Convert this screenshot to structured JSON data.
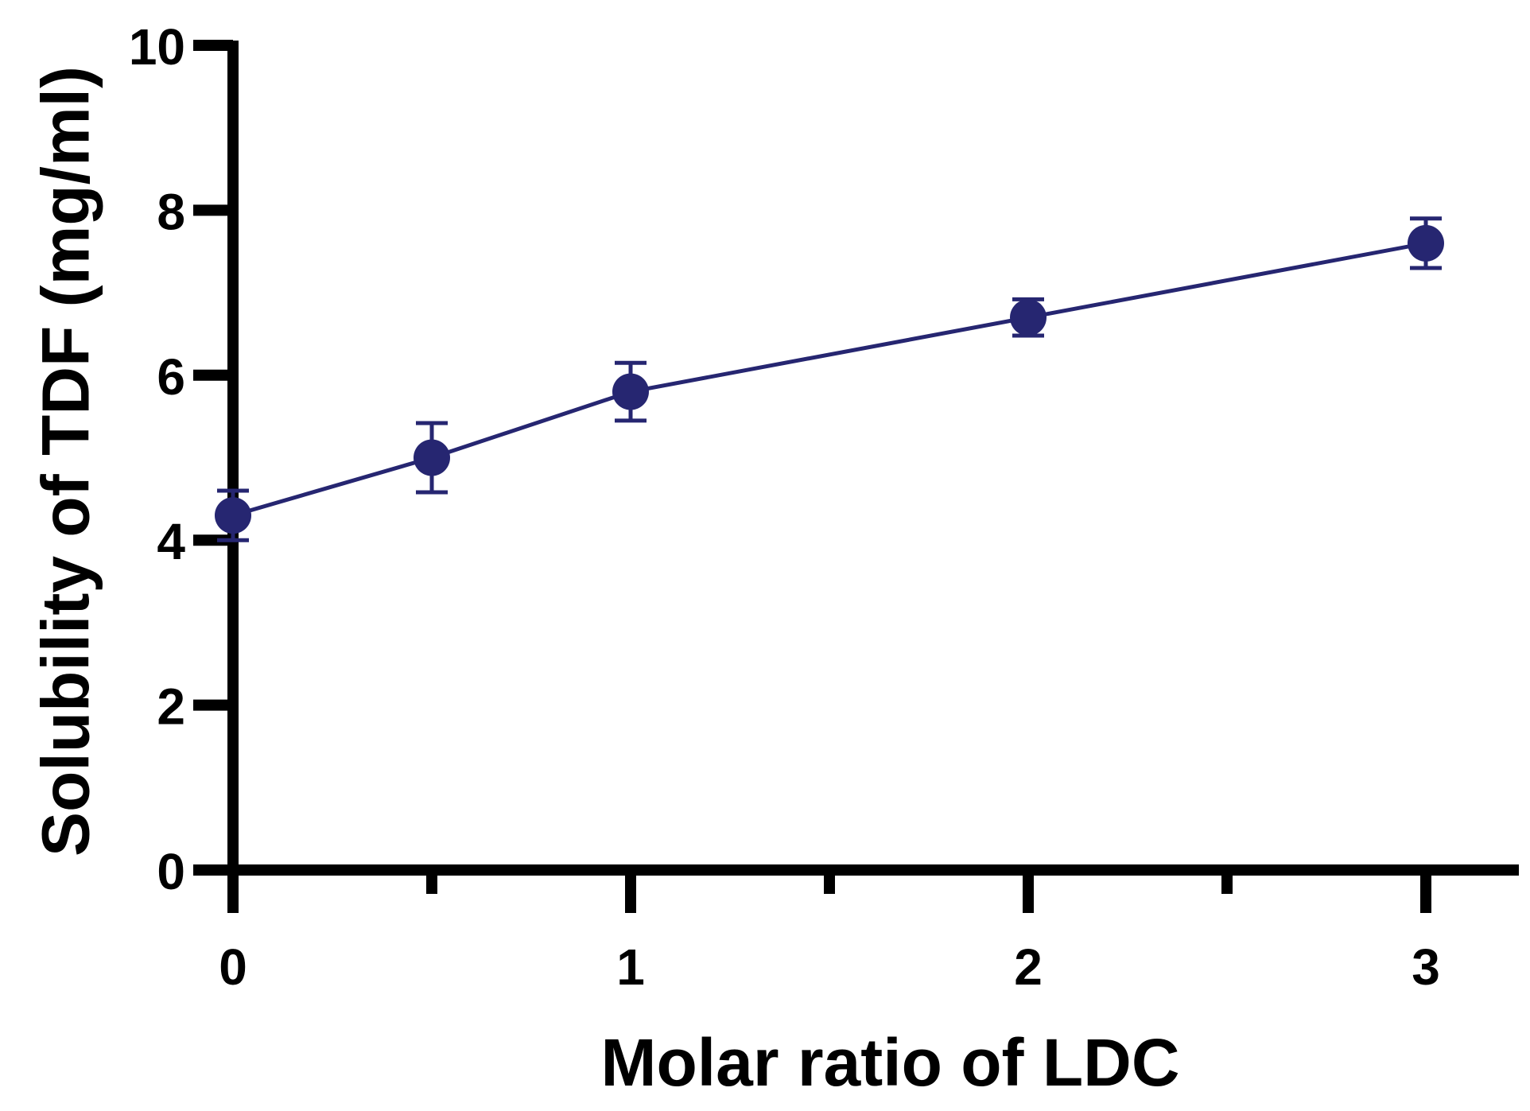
{
  "chart_data": {
    "type": "line",
    "title": "",
    "xlabel": "Molar ratio of LDC",
    "ylabel": "Solubility of TDF (mg/ml)",
    "xlim": [
      0,
      3.2
    ],
    "ylim": [
      0,
      10
    ],
    "x_ticks": [
      0,
      1,
      2,
      3
    ],
    "x_minor_ticks": [
      0.5,
      1.5,
      2.5
    ],
    "y_ticks": [
      0,
      2,
      4,
      6,
      8,
      10
    ],
    "grid": false,
    "series": [
      {
        "name": "TDF solubility",
        "color": "#262671",
        "x": [
          0,
          0.5,
          1,
          2,
          3
        ],
        "y": [
          4.3,
          5.0,
          5.8,
          6.7,
          7.6
        ],
        "error": [
          0.3,
          0.42,
          0.35,
          0.22,
          0.3
        ]
      }
    ]
  }
}
